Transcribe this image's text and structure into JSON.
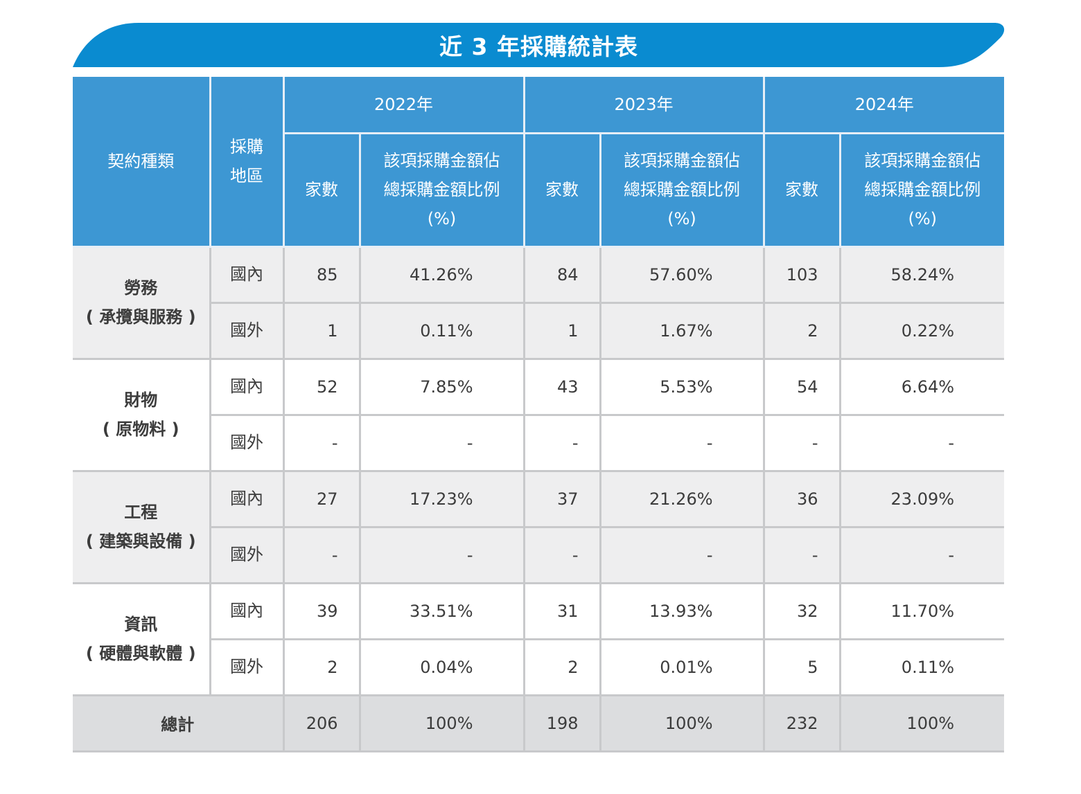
{
  "title": "近 3 年採購統計表",
  "header": {
    "contract_type": "契約種類",
    "region_line1": "採購",
    "region_line2": "地區",
    "years": [
      "2022年",
      "2023年",
      "2024年"
    ],
    "count_label": "家數",
    "ratio_line1": "該項採購金額佔",
    "ratio_line2": "總採購金額比例",
    "ratio_line3": "(%)"
  },
  "rows": [
    {
      "category": "勞務",
      "subtitle": "( 承攬與服務 )",
      "domestic": {
        "region": "國內",
        "c2022": "85",
        "p2022": "41.26%",
        "c2023": "84",
        "p2023": "57.60%",
        "c2024": "103",
        "p2024": "58.24%"
      },
      "foreign": {
        "region": "國外",
        "c2022": "1",
        "p2022": "0.11%",
        "c2023": "1",
        "p2023": "1.67%",
        "c2024": "2",
        "p2024": "0.22%"
      }
    },
    {
      "category": "財物",
      "subtitle": "( 原物料 )",
      "domestic": {
        "region": "國內",
        "c2022": "52",
        "p2022": "7.85%",
        "c2023": "43",
        "p2023": "5.53%",
        "c2024": "54",
        "p2024": "6.64%"
      },
      "foreign": {
        "region": "國外",
        "c2022": "-",
        "p2022": "-",
        "c2023": "-",
        "p2023": "-",
        "c2024": "-",
        "p2024": "-"
      }
    },
    {
      "category": "工程",
      "subtitle": "( 建築與設備 )",
      "domestic": {
        "region": "國內",
        "c2022": "27",
        "p2022": "17.23%",
        "c2023": "37",
        "p2023": "21.26%",
        "c2024": "36",
        "p2024": "23.09%"
      },
      "foreign": {
        "region": "國外",
        "c2022": "-",
        "p2022": "-",
        "c2023": "-",
        "p2023": "-",
        "c2024": "-",
        "p2024": "-"
      }
    },
    {
      "category": "資訊",
      "subtitle": "( 硬體與軟體 )",
      "domestic": {
        "region": "國內",
        "c2022": "39",
        "p2022": "33.51%",
        "c2023": "31",
        "p2023": "13.93%",
        "c2024": "32",
        "p2024": "11.70%"
      },
      "foreign": {
        "region": "國外",
        "c2022": "2",
        "p2022": "0.04%",
        "c2023": "2",
        "p2023": "0.01%",
        "c2024": "5",
        "p2024": "0.11%"
      }
    }
  ],
  "total": {
    "label": "總計",
    "c2022": "206",
    "p2022": "100%",
    "c2023": "198",
    "p2023": "100%",
    "c2024": "232",
    "p2024": "100%"
  },
  "colors": {
    "banner": "#0a8bd0",
    "header": "#3d97d3",
    "gray_row": "#eeeeef",
    "total_row": "#dcdddf",
    "border": "#c8c9cb"
  }
}
